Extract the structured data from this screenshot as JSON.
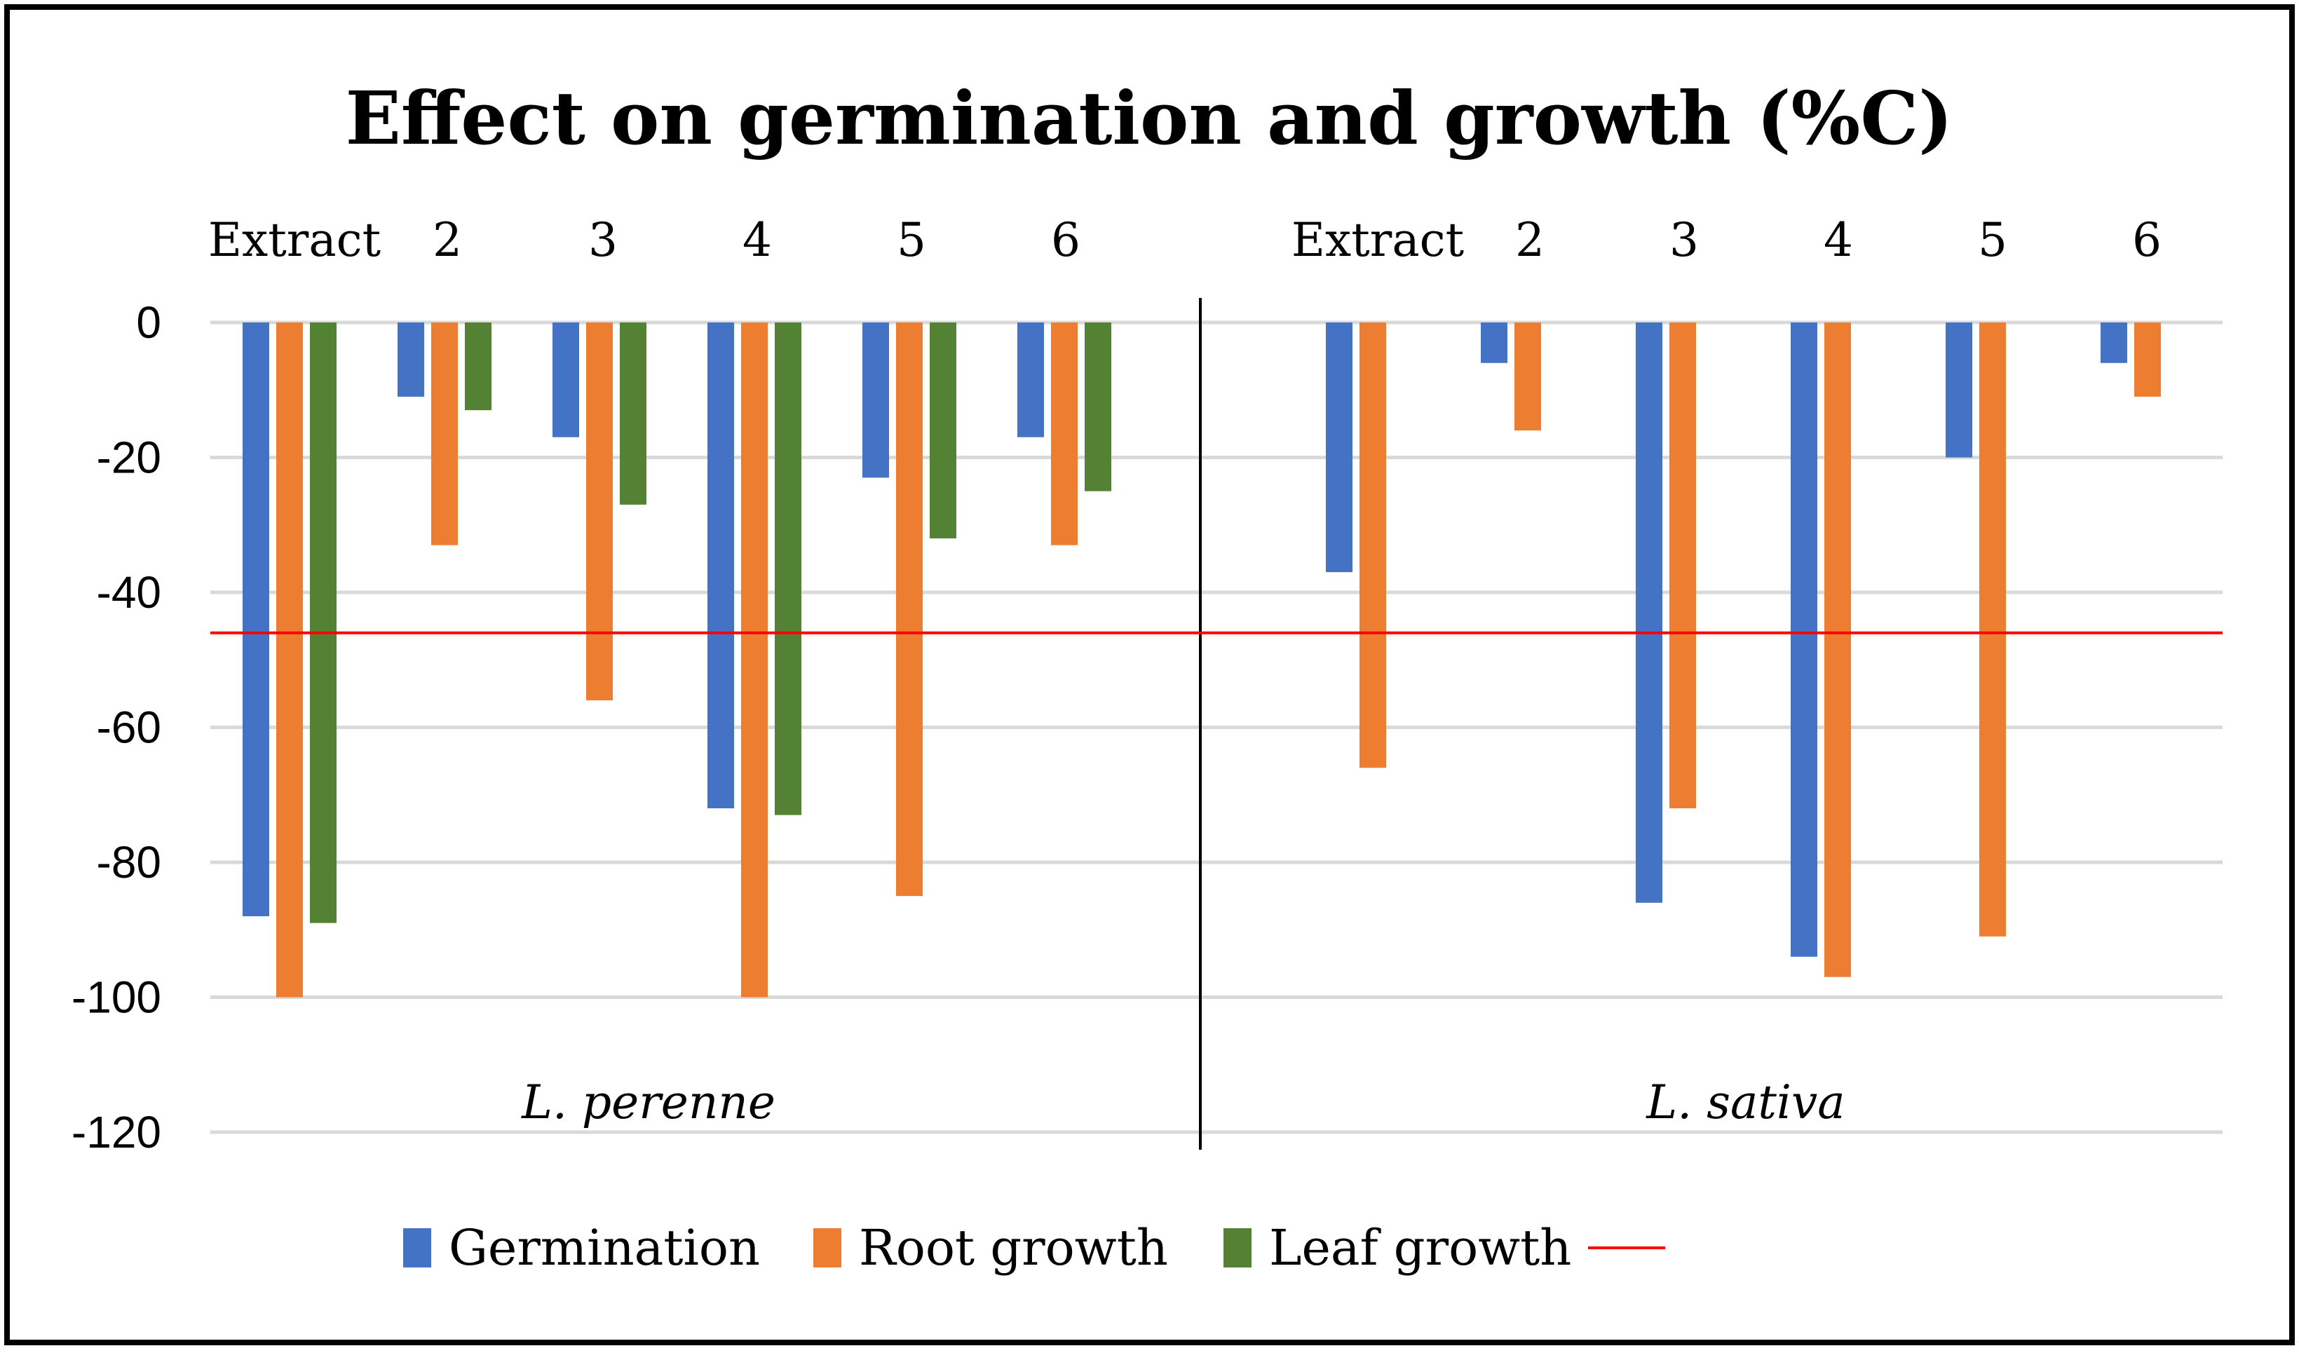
{
  "colors": {
    "background": "#ffffff",
    "border": "#000000",
    "gridline": "#d9d9d9",
    "divider": "#000000",
    "reference_line": "#ff0000"
  },
  "chart_data": {
    "type": "bar",
    "title": "Effect on germination and growth (%C)",
    "ylim": [
      -120,
      0
    ],
    "yticks": [
      0,
      -20,
      -40,
      -60,
      -80,
      -100,
      -120
    ],
    "grid": true,
    "legend_position": "bottom",
    "groups": [
      {
        "label": "L. perenne",
        "categories": [
          "Extract",
          "2",
          "3",
          "4",
          "5",
          "6"
        ],
        "series": [
          {
            "name": "Germination",
            "color": "#4472c4",
            "values": [
              -88,
              -11,
              -17,
              -72,
              -23,
              -17
            ]
          },
          {
            "name": "Root growth",
            "color": "#ed7d31",
            "values": [
              -100,
              -33,
              -56,
              -100,
              -85,
              -33
            ]
          },
          {
            "name": "Leaf growth",
            "color": "#548235",
            "values": [
              -89,
              -13,
              -27,
              -73,
              -32,
              -25
            ]
          }
        ]
      },
      {
        "label": "L. sativa",
        "categories": [
          "Extract",
          "2",
          "3",
          "4",
          "5",
          "6"
        ],
        "series": [
          {
            "name": "Germination",
            "color": "#4472c4",
            "values": [
              -37,
              -6,
              -86,
              -94,
              -20,
              -6
            ]
          },
          {
            "name": "Root growth",
            "color": "#ed7d31",
            "values": [
              -66,
              -16,
              -72,
              -97,
              -91,
              -11
            ]
          }
        ]
      }
    ],
    "legend": [
      {
        "name": "Germination",
        "color": "#4472c4",
        "type": "bar"
      },
      {
        "name": "Root growth",
        "color": "#ed7d31",
        "type": "bar"
      },
      {
        "name": "Leaf growth",
        "color": "#548235",
        "type": "bar"
      },
      {
        "name": "",
        "color": "#ff0000",
        "type": "line"
      }
    ],
    "reference_line": {
      "y": -46,
      "color": "#ff0000"
    }
  }
}
